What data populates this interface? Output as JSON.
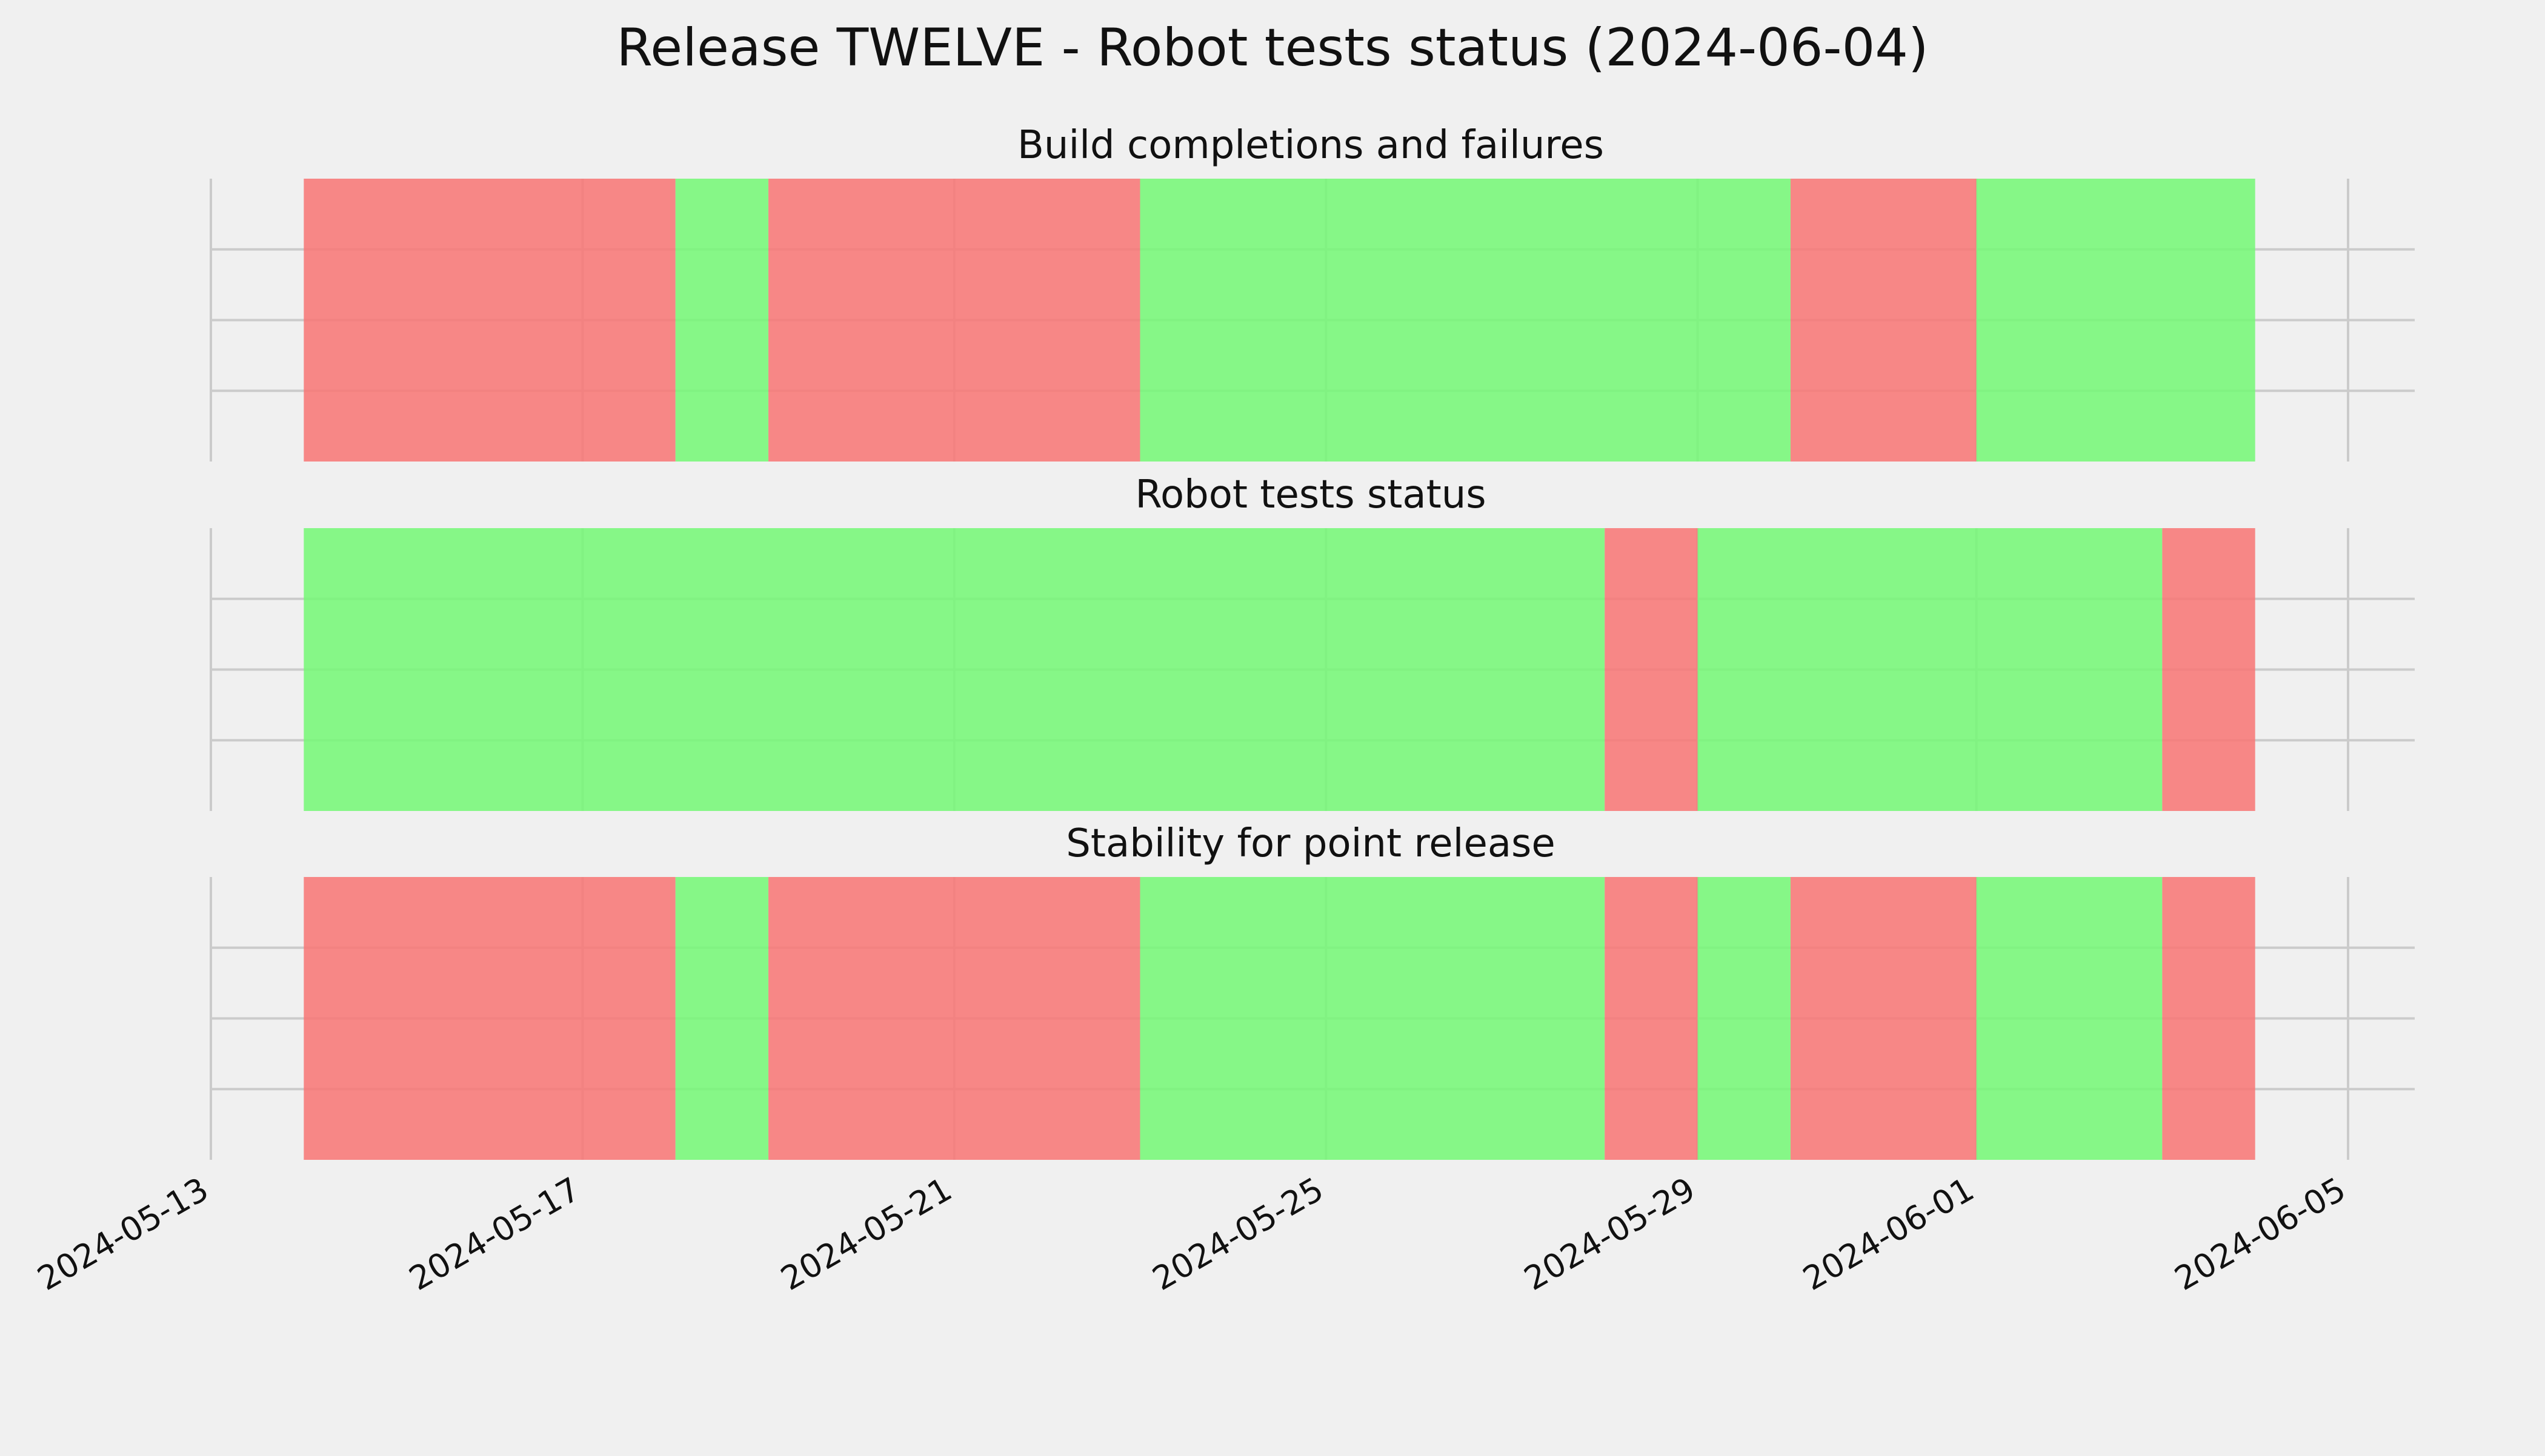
{
  "chart_data": {
    "type": "timeline",
    "title": "Release TWELVE - Robot tests status (2024-06-04)",
    "x_range": [
      "2024-05-13",
      "2024-06-05"
    ],
    "x_ticks": [
      "2024-05-13",
      "2024-05-17",
      "2024-05-21",
      "2024-05-25",
      "2024-05-29",
      "2024-06-01",
      "2024-06-05"
    ],
    "grid": true,
    "colors": {
      "pass": "#76f777",
      "fail": "#f77876",
      "background": "#f0f0f0",
      "grid": "#cbcbcb"
    },
    "panels": [
      {
        "title": "Build completions and failures",
        "segments": [
          {
            "start": "2024-05-14",
            "end": "2024-05-18",
            "status": "fail"
          },
          {
            "start": "2024-05-18",
            "end": "2024-05-19",
            "status": "pass"
          },
          {
            "start": "2024-05-19",
            "end": "2024-05-23",
            "status": "fail"
          },
          {
            "start": "2024-05-23",
            "end": "2024-05-30",
            "status": "pass"
          },
          {
            "start": "2024-05-30",
            "end": "2024-06-01",
            "status": "fail"
          },
          {
            "start": "2024-06-01",
            "end": "2024-06-04",
            "status": "pass"
          }
        ]
      },
      {
        "title": "Robot tests status",
        "segments": [
          {
            "start": "2024-05-14",
            "end": "2024-05-28",
            "status": "pass"
          },
          {
            "start": "2024-05-28",
            "end": "2024-05-29",
            "status": "fail"
          },
          {
            "start": "2024-05-29",
            "end": "2024-06-03",
            "status": "pass"
          },
          {
            "start": "2024-06-03",
            "end": "2024-06-04",
            "status": "fail"
          }
        ]
      },
      {
        "title": "Stability for point release",
        "segments": [
          {
            "start": "2024-05-14",
            "end": "2024-05-18",
            "status": "fail"
          },
          {
            "start": "2024-05-18",
            "end": "2024-05-19",
            "status": "pass"
          },
          {
            "start": "2024-05-19",
            "end": "2024-05-23",
            "status": "fail"
          },
          {
            "start": "2024-05-23",
            "end": "2024-05-28",
            "status": "pass"
          },
          {
            "start": "2024-05-28",
            "end": "2024-05-29",
            "status": "fail"
          },
          {
            "start": "2024-05-29",
            "end": "2024-05-30",
            "status": "pass"
          },
          {
            "start": "2024-05-30",
            "end": "2024-06-01",
            "status": "fail"
          },
          {
            "start": "2024-06-01",
            "end": "2024-06-03",
            "status": "pass"
          },
          {
            "start": "2024-06-03",
            "end": "2024-06-04",
            "status": "fail"
          }
        ]
      }
    ]
  }
}
